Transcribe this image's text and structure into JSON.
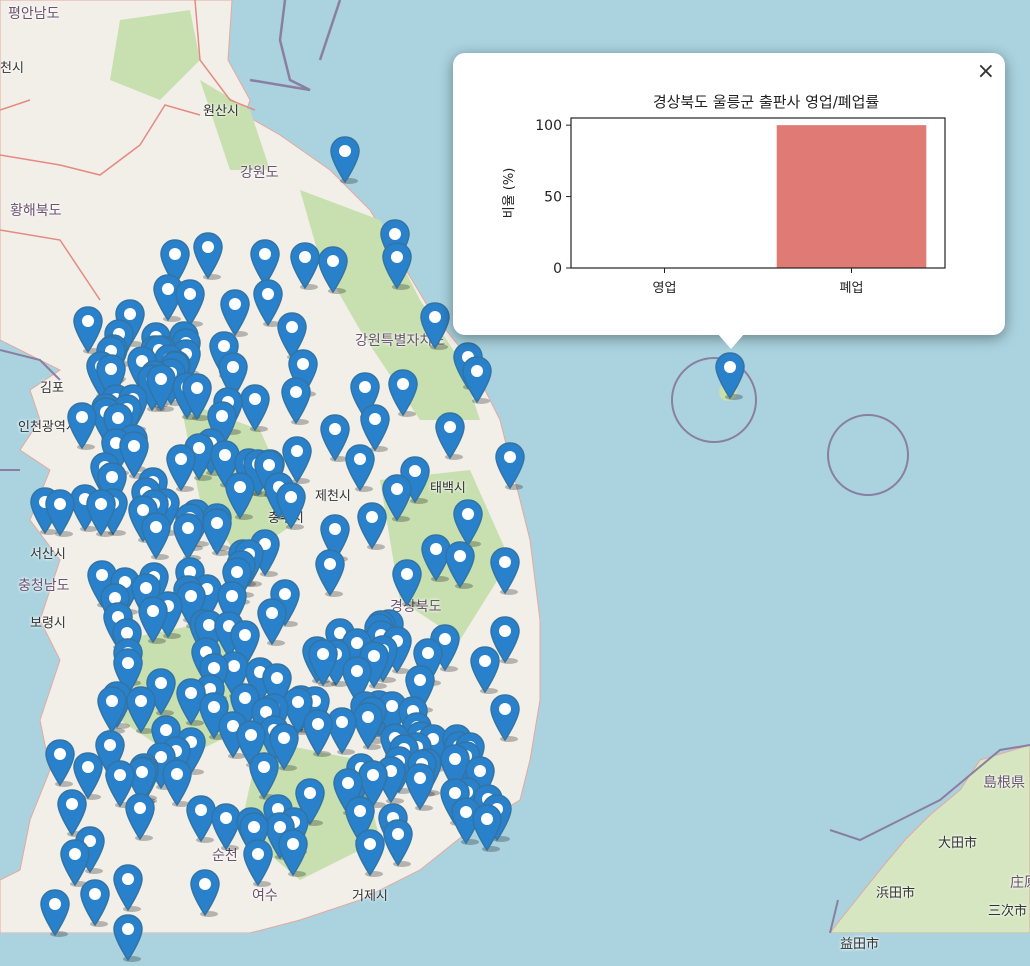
{
  "map": {
    "labels": [
      "평안남도",
      "천시",
      "원산시",
      "강원도",
      "황해북도",
      "김포",
      "인천광역시",
      "서산시",
      "충청남도",
      "보령시",
      "강원특별자치도",
      "제천시",
      "충주시",
      "태백시",
      "경상북도",
      "거제시",
      "여수",
      "순천",
      "島根県",
      "大田市",
      "浜田市",
      "三次市",
      "庄原",
      "益田市"
    ],
    "colors": {
      "sea": "#aad3df",
      "land": "#f2efe9",
      "forest": "#c8dfb0",
      "marker": "#2a81cb",
      "marker_border": "#3274a3"
    },
    "marker_icon": "map-pin-icon"
  },
  "popup": {
    "close_label": "×",
    "close_icon": "close-icon"
  },
  "chart_data": {
    "type": "bar",
    "title": "경상북도 울릉군 출판사 영업/폐업률",
    "xlabel": "",
    "ylabel": "비율 (%)",
    "categories": [
      "영업",
      "폐업"
    ],
    "values": [
      0,
      100
    ],
    "ylim": [
      0,
      105
    ],
    "yticks": [
      "0",
      "50",
      "100"
    ],
    "bar_color": "#e07a75",
    "grid": false
  }
}
